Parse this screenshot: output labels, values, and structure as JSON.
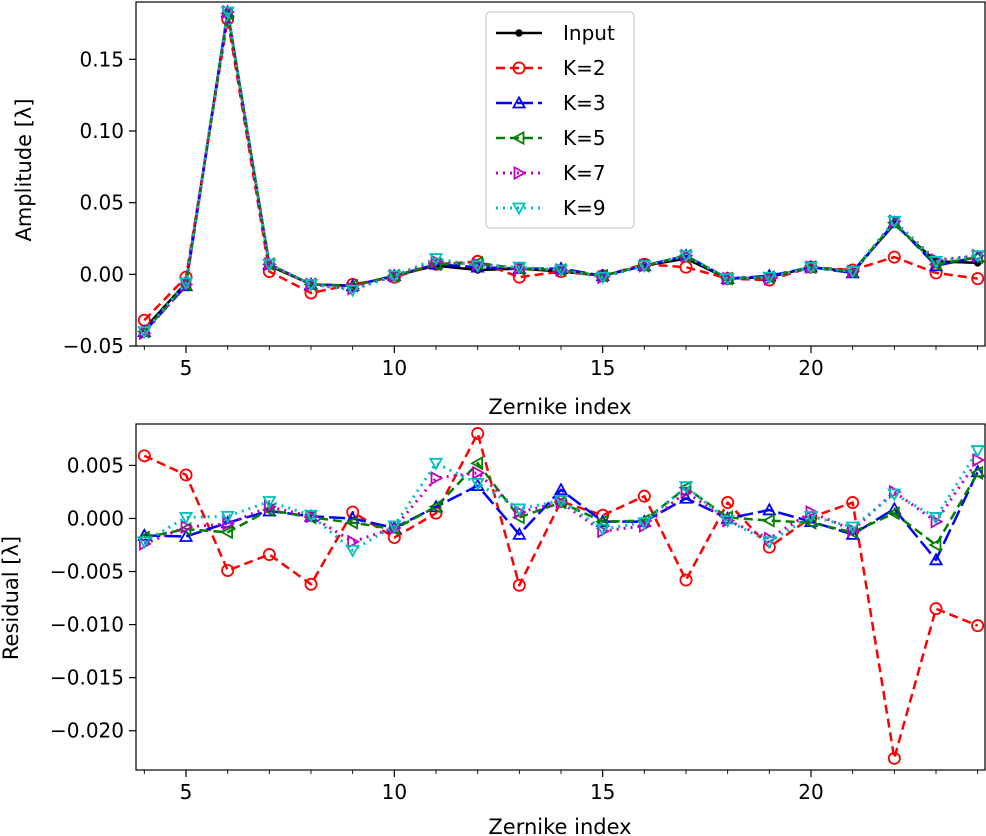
{
  "chart_data": [
    {
      "type": "line",
      "id": "amplitude",
      "xlabel": "Zernike index",
      "ylabel": "Amplitude [λ]",
      "xlim": [
        3.8,
        24.2
      ],
      "ylim": [
        -0.05,
        0.19
      ],
      "xticks": [
        5,
        10,
        15,
        20
      ],
      "xtick_labels": [
        "5",
        "10",
        "15",
        "20"
      ],
      "yticks": [
        -0.05,
        0.0,
        0.05,
        0.1,
        0.15
      ],
      "ytick_labels": [
        "−0.05",
        "0.00",
        "0.05",
        "0.10",
        "0.15"
      ],
      "legend_position": "top-center",
      "x": [
        4,
        5,
        6,
        7,
        8,
        9,
        10,
        11,
        12,
        13,
        14,
        15,
        16,
        17,
        18,
        19,
        20,
        21,
        22,
        23,
        24
      ],
      "series": [
        {
          "name": "Input",
          "color": "#000000",
          "marker": "dot",
          "dash": "none",
          "width": 2.5,
          "values": [
            -0.038,
            -0.006,
            0.183,
            0.006,
            -0.007,
            -0.008,
            -0.001,
            0.006,
            0.003,
            0.004,
            0.002,
            -0.001,
            0.006,
            0.011,
            -0.003,
            -0.002,
            0.005,
            0.002,
            0.035,
            0.009,
            0.008
          ]
        },
        {
          "name": "K=2",
          "color": "#ff0000",
          "marker": "circle",
          "dash": "9,5",
          "width": 2.5,
          "values": [
            -0.032,
            -0.002,
            0.178,
            0.002,
            -0.013,
            -0.007,
            -0.002,
            0.007,
            0.009,
            -0.002,
            0.002,
            -0.001,
            0.007,
            0.005,
            -0.003,
            -0.004,
            0.005,
            0.003,
            0.012,
            0.001,
            -0.003
          ]
        },
        {
          "name": "K=3",
          "color": "#0000ff",
          "marker": "triangle-up",
          "dash": "16,5",
          "width": 2.5,
          "values": [
            -0.04,
            -0.008,
            0.183,
            0.007,
            -0.007,
            -0.008,
            -0.001,
            0.007,
            0.005,
            0.004,
            0.004,
            -0.001,
            0.006,
            0.013,
            -0.003,
            -0.001,
            0.005,
            0.001,
            0.036,
            0.006,
            0.012
          ]
        },
        {
          "name": "K=5",
          "color": "#008000",
          "marker": "triangle-left",
          "dash": "9,5",
          "width": 2.5,
          "values": [
            -0.04,
            -0.007,
            0.182,
            0.007,
            -0.007,
            -0.008,
            -0.001,
            0.007,
            0.008,
            0.004,
            0.003,
            -0.001,
            0.006,
            0.013,
            -0.003,
            -0.002,
            0.005,
            0.002,
            0.036,
            0.007,
            0.012
          ]
        },
        {
          "name": "K=7",
          "color": "#bf00bf",
          "marker": "triangle-right",
          "dash": "2,5",
          "width": 3,
          "values": [
            -0.041,
            -0.007,
            0.183,
            0.007,
            -0.007,
            -0.01,
            -0.001,
            0.009,
            0.007,
            0.004,
            0.003,
            -0.002,
            0.006,
            0.013,
            -0.003,
            -0.003,
            0.005,
            0.002,
            0.037,
            0.01,
            0.013
          ]
        },
        {
          "name": "K=9",
          "color": "#00bfbf",
          "marker": "triangle-down",
          "dash": "2,5",
          "width": 3,
          "values": [
            -0.04,
            -0.006,
            0.183,
            0.007,
            -0.007,
            -0.011,
            -0.001,
            0.011,
            0.006,
            0.005,
            0.003,
            -0.002,
            0.006,
            0.013,
            -0.003,
            -0.002,
            0.005,
            0.002,
            0.037,
            0.009,
            0.013
          ]
        }
      ]
    },
    {
      "type": "line",
      "id": "residual",
      "xlabel": "Zernike index",
      "ylabel": "Residual [λ]",
      "xlim": [
        3.8,
        24.2
      ],
      "ylim": [
        -0.0237,
        0.0089
      ],
      "xticks": [
        5,
        10,
        15,
        20
      ],
      "xtick_labels": [
        "5",
        "10",
        "15",
        "20"
      ],
      "yticks": [
        -0.02,
        -0.015,
        -0.01,
        -0.005,
        0.0,
        0.005
      ],
      "ytick_labels": [
        "−0.020",
        "−0.015",
        "−0.010",
        "−0.005",
        "0.000",
        "0.005"
      ],
      "x": [
        4,
        5,
        6,
        7,
        8,
        9,
        10,
        11,
        12,
        13,
        14,
        15,
        16,
        17,
        18,
        19,
        20,
        21,
        22,
        23,
        24
      ],
      "series": [
        {
          "name": "K=2",
          "color": "#ff0000",
          "marker": "circle",
          "dash": "9,5",
          "width": 2.5,
          "values": [
            0.0059,
            0.0041,
            -0.0049,
            -0.0034,
            -0.0062,
            0.0006,
            -0.0018,
            0.0005,
            0.008,
            -0.0063,
            0.0016,
            0.0003,
            0.0021,
            -0.0058,
            0.0015,
            -0.0027,
            0.0001,
            0.0015,
            -0.0226,
            -0.0085,
            -0.0101
          ]
        },
        {
          "name": "K=3",
          "color": "#0000ff",
          "marker": "triangle-up",
          "dash": "16,5",
          "width": 2.5,
          "values": [
            -0.0016,
            -0.0017,
            -0.0004,
            0.0007,
            0.0002,
            0.0,
            -0.0009,
            0.0011,
            0.0031,
            -0.0015,
            0.0027,
            -0.0003,
            -0.0003,
            0.0019,
            0.0,
            0.0008,
            -0.0003,
            -0.0015,
            0.0009,
            -0.0039,
            0.0044
          ]
        },
        {
          "name": "K=5",
          "color": "#008000",
          "marker": "triangle-left",
          "dash": "9,5",
          "width": 2.5,
          "values": [
            -0.0018,
            -0.001,
            -0.0013,
            0.0008,
            0.0001,
            -0.0004,
            -0.001,
            0.0011,
            0.0052,
            0.0001,
            0.0015,
            -0.0003,
            -0.0002,
            0.0029,
            0.0001,
            -0.0002,
            -0.0004,
            -0.0013,
            0.0005,
            -0.0025,
            0.0043
          ]
        },
        {
          "name": "K=7",
          "color": "#bf00bf",
          "marker": "triangle-right",
          "dash": "2,5",
          "width": 3,
          "values": [
            -0.0024,
            -0.0008,
            -0.0005,
            0.0011,
            0.0002,
            -0.0022,
            -0.0009,
            0.0038,
            0.0043,
            0.0006,
            0.0015,
            -0.0012,
            -0.0007,
            0.0025,
            -0.0002,
            -0.0019,
            0.0006,
            -0.0011,
            0.0025,
            -0.0003,
            0.0055
          ]
        },
        {
          "name": "K=9",
          "color": "#00bfbf",
          "marker": "triangle-down",
          "dash": "2,5",
          "width": 3,
          "values": [
            -0.0022,
            0.0001,
            0.0002,
            0.0016,
            0.0003,
            -0.003,
            -0.0007,
            0.0052,
            0.0033,
            0.0009,
            0.0017,
            -0.001,
            -0.0004,
            0.003,
            -0.0002,
            -0.0022,
            0.0002,
            -0.0008,
            0.0023,
            0.0001,
            0.0064
          ]
        }
      ]
    }
  ]
}
